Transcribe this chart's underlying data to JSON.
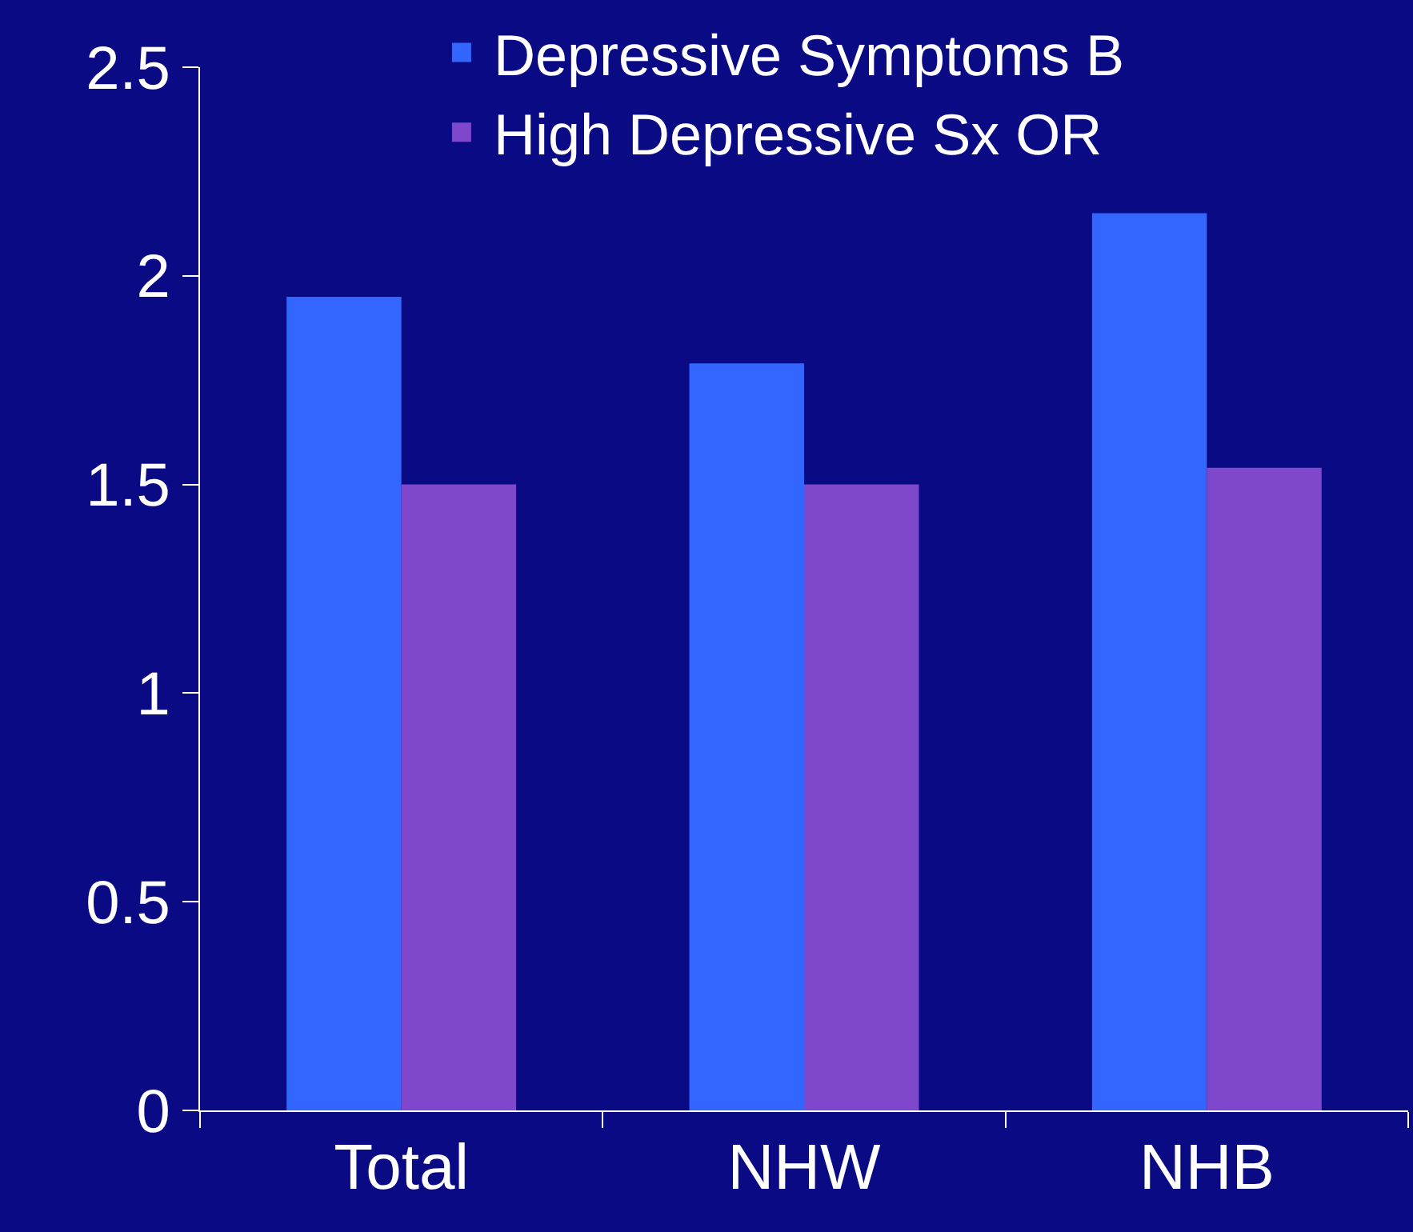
{
  "chart_data": {
    "type": "bar",
    "categories": [
      "Total",
      "NHW",
      "NHB"
    ],
    "series": [
      {
        "name": "Depressive Symptoms B",
        "color": "#3366ff",
        "values": [
          1.95,
          1.79,
          2.15
        ]
      },
      {
        "name": "High Depressive Sx OR",
        "color": "#7f48cc",
        "values": [
          1.5,
          1.5,
          1.54
        ]
      }
    ],
    "ylim": [
      0,
      2.5
    ],
    "yticks": [
      0,
      0.5,
      1,
      1.5,
      2,
      2.5
    ],
    "grid": false,
    "legend": "top right"
  }
}
